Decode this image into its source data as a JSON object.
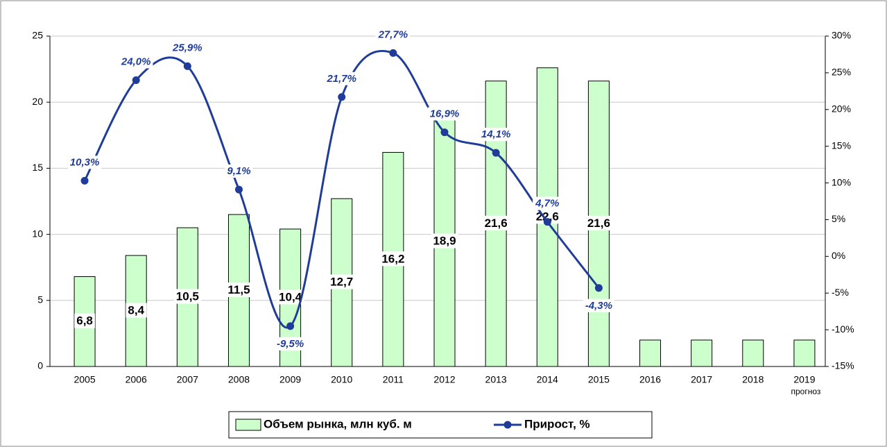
{
  "chart_data": {
    "type": "bar",
    "categories": [
      "2005",
      "2006",
      "2007",
      "2008",
      "2009",
      "2010",
      "2011",
      "2012",
      "2013",
      "2014",
      "2015",
      "2016",
      "2017",
      "2018",
      "2019"
    ],
    "annotation": "прогноз",
    "series": [
      {
        "name": "Объем рынка, млн куб. м",
        "color": "#ccffcc",
        "type": "bar",
        "values": [
          6.8,
          8.4,
          10.5,
          11.5,
          10.4,
          12.7,
          16.2,
          18.9,
          21.6,
          22.6,
          21.6,
          2,
          2,
          2,
          2
        ],
        "value_labels": [
          "6,8",
          "8,4",
          "10,5",
          "11,5",
          "10,4",
          "12,7",
          "16,2",
          "18,9",
          "21,6",
          "22,6",
          "21,6",
          null,
          null,
          null,
          null
        ]
      },
      {
        "name": "Прирост, %",
        "color": "#1f3c99",
        "type": "line",
        "axis": "y2",
        "values": [
          10.3,
          24.0,
          25.9,
          9.1,
          -9.5,
          21.7,
          27.7,
          16.9,
          14.1,
          4.7,
          -4.3,
          null,
          null,
          null,
          null
        ],
        "value_labels": [
          "10,3%",
          "24,0%",
          "25,9%",
          "9,1%",
          "-9,5%",
          "21,7%",
          "27,7%",
          "16,9%",
          "14,1%",
          "4,7%",
          "-4,3%",
          null,
          null,
          null,
          null
        ]
      }
    ],
    "ylim": [
      0,
      25
    ],
    "yticks": [
      0,
      5,
      10,
      15,
      20,
      25
    ],
    "y2lim": [
      -15,
      30
    ],
    "y2ticks": [
      {
        "value": -15,
        "label": "-15%"
      },
      {
        "value": -10,
        "label": "-10%"
      },
      {
        "value": -5,
        "label": "-5%"
      },
      {
        "value": 0,
        "label": "0%"
      },
      {
        "value": 5,
        "label": "5%"
      },
      {
        "value": 10,
        "label": "10%"
      },
      {
        "value": 15,
        "label": "15%"
      },
      {
        "value": 20,
        "label": "20%"
      },
      {
        "value": 25,
        "label": "25%"
      },
      {
        "value": 30,
        "label": "30%"
      }
    ],
    "grid": true,
    "legend": "bottom"
  }
}
